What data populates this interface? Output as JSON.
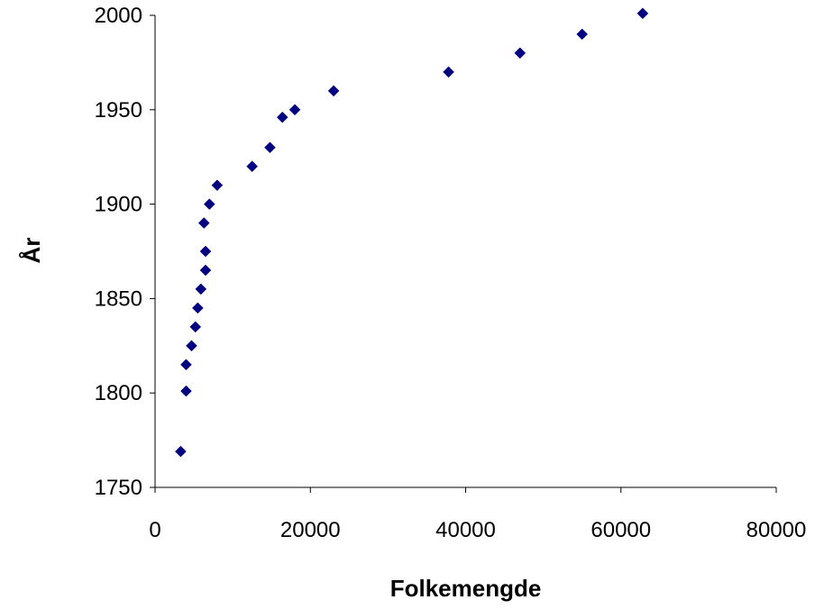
{
  "colors": {
    "marker": "#000080",
    "axis": "#000000",
    "background": "#ffffff"
  },
  "chart_data": {
    "type": "scatter",
    "title": "",
    "xlabel": "Folkemengde",
    "ylabel": "År",
    "xlim": [
      0,
      80000
    ],
    "ylim": [
      1750,
      2000
    ],
    "x_ticks": [
      0,
      20000,
      40000,
      60000,
      80000
    ],
    "y_ticks": [
      1750,
      1800,
      1850,
      1900,
      1950,
      2000
    ],
    "grid": false,
    "legend": "none",
    "marker": "diamond",
    "points": [
      {
        "x": 3300,
        "y": 1769
      },
      {
        "x": 4000,
        "y": 1801
      },
      {
        "x": 4000,
        "y": 1815
      },
      {
        "x": 4700,
        "y": 1825
      },
      {
        "x": 5200,
        "y": 1835
      },
      {
        "x": 5500,
        "y": 1845
      },
      {
        "x": 5900,
        "y": 1855
      },
      {
        "x": 6500,
        "y": 1865
      },
      {
        "x": 6500,
        "y": 1875
      },
      {
        "x": 6300,
        "y": 1890
      },
      {
        "x": 7000,
        "y": 1900
      },
      {
        "x": 8000,
        "y": 1910
      },
      {
        "x": 12500,
        "y": 1920
      },
      {
        "x": 14800,
        "y": 1930
      },
      {
        "x": 16400,
        "y": 1946
      },
      {
        "x": 18000,
        "y": 1950
      },
      {
        "x": 23000,
        "y": 1960
      },
      {
        "x": 37800,
        "y": 1970
      },
      {
        "x": 47000,
        "y": 1980
      },
      {
        "x": 55000,
        "y": 1990
      },
      {
        "x": 62800,
        "y": 2001
      }
    ]
  }
}
